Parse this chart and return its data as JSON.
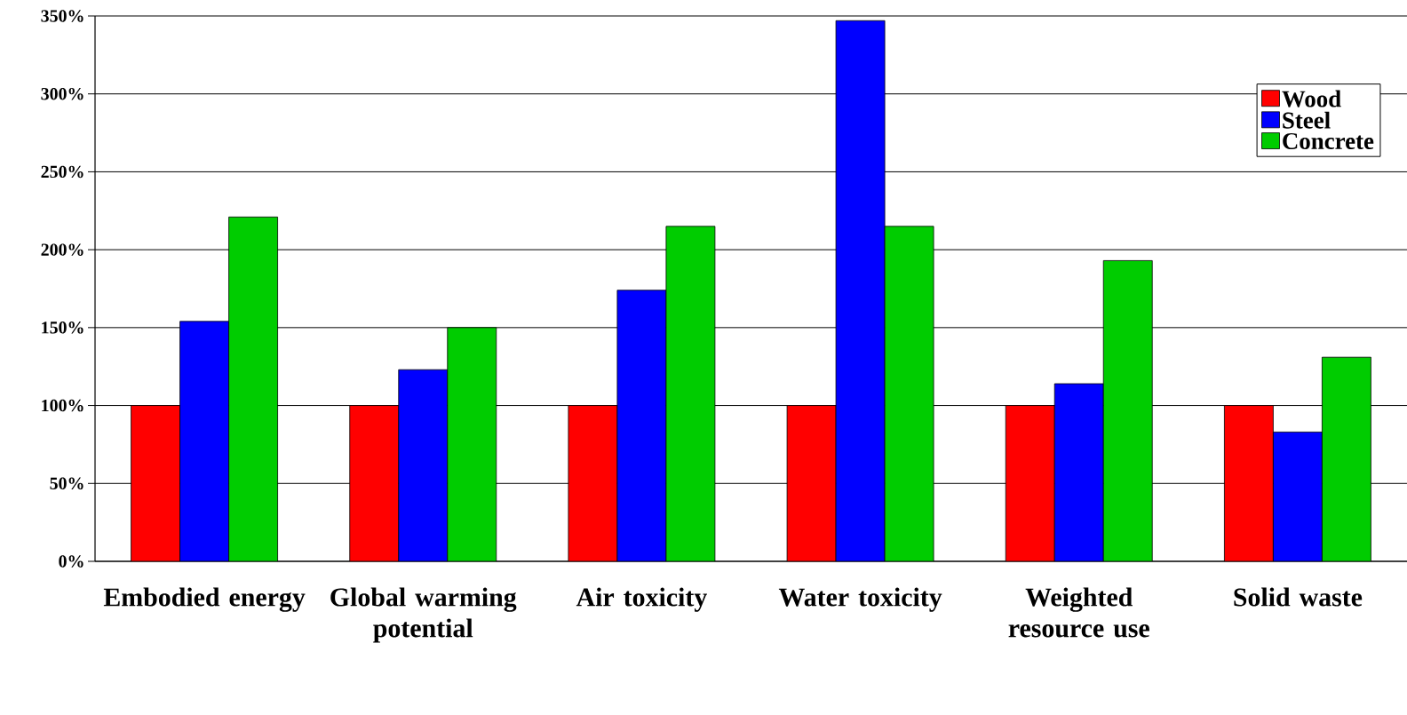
{
  "chart_data": {
    "type": "bar",
    "categories": [
      "Embodied energy",
      "Global warming potential",
      "Air toxicity",
      "Water toxicity",
      "Weighted resource use",
      "Solid waste"
    ],
    "series": [
      {
        "name": "Wood",
        "color": "#ff0000",
        "values": [
          100,
          100,
          100,
          100,
          100,
          100
        ]
      },
      {
        "name": "Steel",
        "color": "#0000ff",
        "values": [
          154,
          123,
          174,
          347,
          114,
          83
        ]
      },
      {
        "name": "Concrete",
        "color": "#00cc00",
        "values": [
          221,
          150,
          215,
          215,
          193,
          131
        ]
      }
    ],
    "ylim": [
      0,
      350
    ],
    "yticks": [
      {
        "value": 0,
        "label": "0%"
      },
      {
        "value": 50,
        "label": "50%"
      },
      {
        "value": 100,
        "label": "100%"
      },
      {
        "value": 150,
        "label": "150%"
      },
      {
        "value": 200,
        "label": "200%"
      },
      {
        "value": 250,
        "label": "250%"
      },
      {
        "value": 300,
        "label": "300%"
      },
      {
        "value": 350,
        "label": "350%"
      }
    ],
    "grid": "y",
    "legend": "top right"
  }
}
